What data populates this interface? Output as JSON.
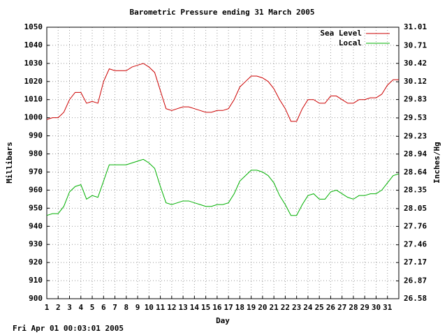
{
  "chart_data": {
    "type": "line",
    "title": "Barometric Pressure ending 31 March 2005",
    "x_label": "Day",
    "y_label": "Millibars",
    "y2_label": "Inches/Hg",
    "footer": "Fri Apr 01 00:03:01 2005",
    "grid": true,
    "legend": "top-right",
    "xlim": [
      1,
      32
    ],
    "xticks": [
      1,
      2,
      3,
      4,
      5,
      6,
      7,
      8,
      9,
      10,
      11,
      12,
      13,
      14,
      15,
      16,
      17,
      18,
      19,
      20,
      21,
      22,
      23,
      24,
      25,
      26,
      27,
      28,
      29,
      30,
      31
    ],
    "ylim": [
      900,
      1050
    ],
    "yticks": [
      900,
      910,
      920,
      930,
      940,
      950,
      960,
      970,
      980,
      990,
      1000,
      1010,
      1020,
      1030,
      1040,
      1050
    ],
    "y2lim": [
      26.58,
      31.01
    ],
    "y2ticks": [
      26.58,
      26.87,
      27.17,
      27.46,
      27.76,
      28.05,
      28.35,
      28.64,
      28.94,
      29.23,
      29.53,
      29.83,
      30.12,
      30.42,
      30.71,
      31.01
    ],
    "x": [
      1,
      1.5,
      2,
      2.5,
      3,
      3.5,
      4,
      4.5,
      5,
      5.5,
      6,
      6.5,
      7,
      7.5,
      8,
      8.5,
      9,
      9.5,
      10,
      10.5,
      11,
      11.5,
      12,
      12.5,
      13,
      13.5,
      14,
      14.5,
      15,
      15.5,
      16,
      16.5,
      17,
      17.5,
      18,
      18.5,
      19,
      19.5,
      20,
      20.5,
      21,
      21.5,
      22,
      22.5,
      23,
      23.5,
      24,
      24.5,
      25,
      25.5,
      26,
      26.5,
      27,
      27.5,
      28,
      28.5,
      29,
      29.5,
      30,
      30.5,
      31,
      31.5,
      32
    ],
    "series": [
      {
        "name": "Sea Level",
        "color": "#cc0000",
        "values": [
          999,
          1000,
          1000,
          1003,
          1010,
          1014,
          1014,
          1008,
          1009,
          1008,
          1020,
          1027,
          1026,
          1026,
          1026,
          1028,
          1029,
          1030,
          1028,
          1025,
          1015,
          1005,
          1004,
          1005,
          1006,
          1006,
          1005,
          1004,
          1003,
          1003,
          1004,
          1004,
          1005,
          1010,
          1017,
          1020,
          1023,
          1023,
          1022,
          1020,
          1016,
          1010,
          1005,
          998,
          998,
          1005,
          1010,
          1010,
          1008,
          1008,
          1012,
          1012,
          1010,
          1008,
          1008,
          1010,
          1010,
          1011,
          1011,
          1013,
          1018,
          1021,
          1021
        ]
      },
      {
        "name": "Local",
        "color": "#00b000",
        "values": [
          946,
          947,
          947,
          951,
          959,
          962,
          963,
          955,
          957,
          956,
          965,
          974,
          974,
          974,
          974,
          975,
          976,
          977,
          975,
          972,
          962,
          953,
          952,
          953,
          954,
          954,
          953,
          952,
          951,
          951,
          952,
          952,
          953,
          958,
          965,
          968,
          971,
          971,
          970,
          968,
          964,
          957,
          952,
          946,
          946,
          952,
          957,
          958,
          955,
          955,
          959,
          960,
          958,
          956,
          955,
          957,
          957,
          958,
          958,
          960,
          964,
          968,
          969
        ]
      }
    ]
  }
}
